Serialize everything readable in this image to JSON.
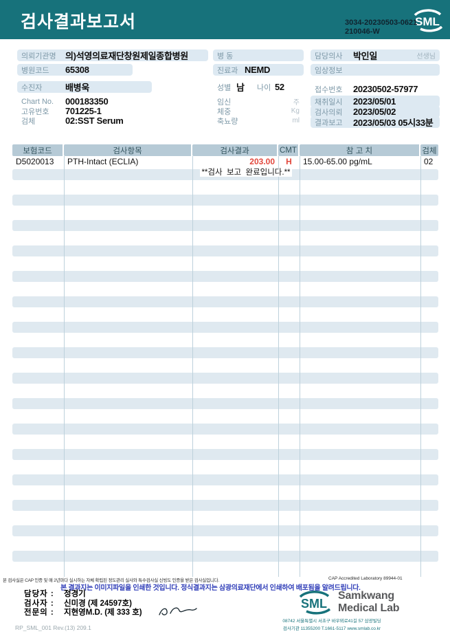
{
  "header": {
    "title": "검사결과보고서",
    "code_line1": "3034-20230503-0621",
    "code_line2": "210046-W",
    "logo_text": "SML"
  },
  "info": {
    "left": {
      "org_label": "의뢰기관명",
      "org_value": "의)석영의료재단창원제일종합병원",
      "hosp_code_label": "병원코드",
      "hosp_code_value": "65308",
      "patient_label": "수진자",
      "patient_value": "배병욱",
      "chart_label": "Chart No.",
      "chart_value": "000183350",
      "uid_label": "고유번호",
      "uid_value": "701225-1",
      "specimen_label": "검체",
      "specimen_value": "02:SST Serum"
    },
    "middle": {
      "ward_label": "병 동",
      "ward_value": "",
      "dept_label": "진료과",
      "dept_value": "NEMD",
      "sex_label": "성별",
      "sex_value": "남",
      "age_label": "나이",
      "age_value": "52",
      "pregnancy_label": "임신",
      "pregnancy_unit": "주",
      "weight_label": "체중",
      "weight_unit": "Kg",
      "urine_label": "축뇨량",
      "urine_unit": "ml"
    },
    "right": {
      "doctor_label": "담당의사",
      "doctor_value": "박인일",
      "doctor_suffix": "선생님",
      "clinical_label": "임상정보",
      "clinical_value": "",
      "receipt_label": "접수번호",
      "receipt_value": "20230502-57977",
      "collected_label": "채취일시",
      "collected_value": "2023/05/01",
      "requested_label": "검사의뢰",
      "requested_value": "2023/05/02",
      "reported_label": "결과보고",
      "reported_value": "2023/05/03 05시33분"
    }
  },
  "table": {
    "headers": [
      "보험코드",
      "검사항목",
      "검사결과",
      "CMT",
      "참 고 치",
      "검체"
    ],
    "rows": [
      {
        "code": "D5020013",
        "test": "PTH-Intact (ECLIA)",
        "result": "203.00",
        "flag": "H",
        "reference": "15.00-65.00 pg/mL",
        "specimen": "02"
      }
    ],
    "message": "**검사  보고  완료입니다.**"
  },
  "footer": {
    "cap_line": "본 검사실은 CAP 인증 및 매 2년마다 실시하는 자체 확립된 정도관리 실사와 특수검사실 신빙도 인증을 받은 검사실입니다.",
    "cap_right": "CAP Accredited Laboratory 89944-01",
    "notice": "본 결과지는 이미지파일을 인쇄한 것입니다. 정식결과지는 삼광의료재단에서 인쇄하여 배포됨을 알려드립니다.",
    "manager_label": "담당자 :",
    "manager_value": "정경기",
    "examiner_label": "검사자 :",
    "examiner_value": "신미경 (제 24597호)",
    "specialist_label": "전문의 :",
    "specialist_value": "지현영M.D. (제 333 호)",
    "logo_text": "SML",
    "lab_name_line1": "Samkwang",
    "lab_name_line2": "Medical Lab",
    "address": "08742 서울특별시 서초구 바우뫼로41길 57 삼광빌딩",
    "contact": "검사기관 11355200 T.1661-5117 www.smlab.co.kr",
    "doc_code": "RP_SML_001 Rev.(13) 209.1"
  },
  "colors": {
    "header_teal": "#17727b",
    "pill_blue": "#dde9f2",
    "table_header": "#b6cad6",
    "stripe_blue": "#dfe9f0",
    "result_red": "#e2483d",
    "notice_blue": "#2f3db8"
  }
}
